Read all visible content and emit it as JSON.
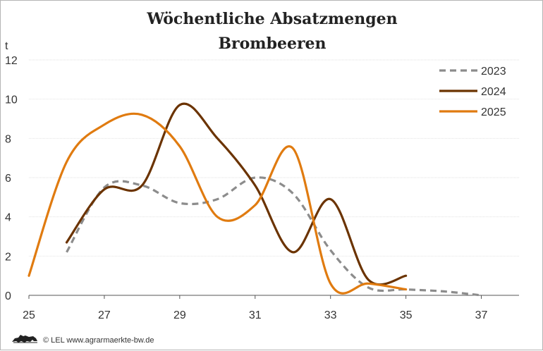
{
  "chart_data": {
    "type": "line",
    "title": "Wöchentliche Absatzmengen",
    "subtitle": "Brombeeren",
    "ylabel": "t",
    "xlabel": "",
    "xlim": [
      25,
      38
    ],
    "ylim": [
      0,
      12
    ],
    "x_ticks": [
      25,
      27,
      29,
      31,
      33,
      35,
      37
    ],
    "y_ticks": [
      0,
      2,
      4,
      6,
      8,
      10,
      12
    ],
    "grid": "horizontal",
    "legend_position": "top-right",
    "series": [
      {
        "name": "2023",
        "color": "#8c8c8c",
        "dash": "dashed",
        "x": [
          26,
          27,
          28,
          29,
          30,
          31,
          32,
          33,
          34,
          35,
          36,
          37
        ],
        "values": [
          2.2,
          5.5,
          5.6,
          4.7,
          4.9,
          6.0,
          5.2,
          2.3,
          0.4,
          0.3,
          0.2,
          0.0
        ]
      },
      {
        "name": "2024",
        "color": "#6b3300",
        "dash": "solid",
        "x": [
          26,
          27,
          28,
          29,
          30,
          31,
          32,
          33,
          34,
          35
        ],
        "values": [
          2.7,
          5.4,
          5.6,
          9.7,
          8.0,
          5.6,
          2.2,
          4.9,
          0.8,
          1.0
        ]
      },
      {
        "name": "2025",
        "color": "#e07b10",
        "dash": "solid",
        "x": [
          25,
          26,
          27,
          28,
          29,
          30,
          31,
          32,
          33,
          34,
          35
        ],
        "values": [
          1.0,
          6.8,
          8.7,
          9.2,
          7.6,
          4.0,
          4.6,
          7.5,
          0.6,
          0.6,
          0.3
        ]
      }
    ]
  },
  "footer": {
    "credit": "© LEL www.agrarmaerkte-bw.de",
    "logo": "lion-logo-icon"
  }
}
